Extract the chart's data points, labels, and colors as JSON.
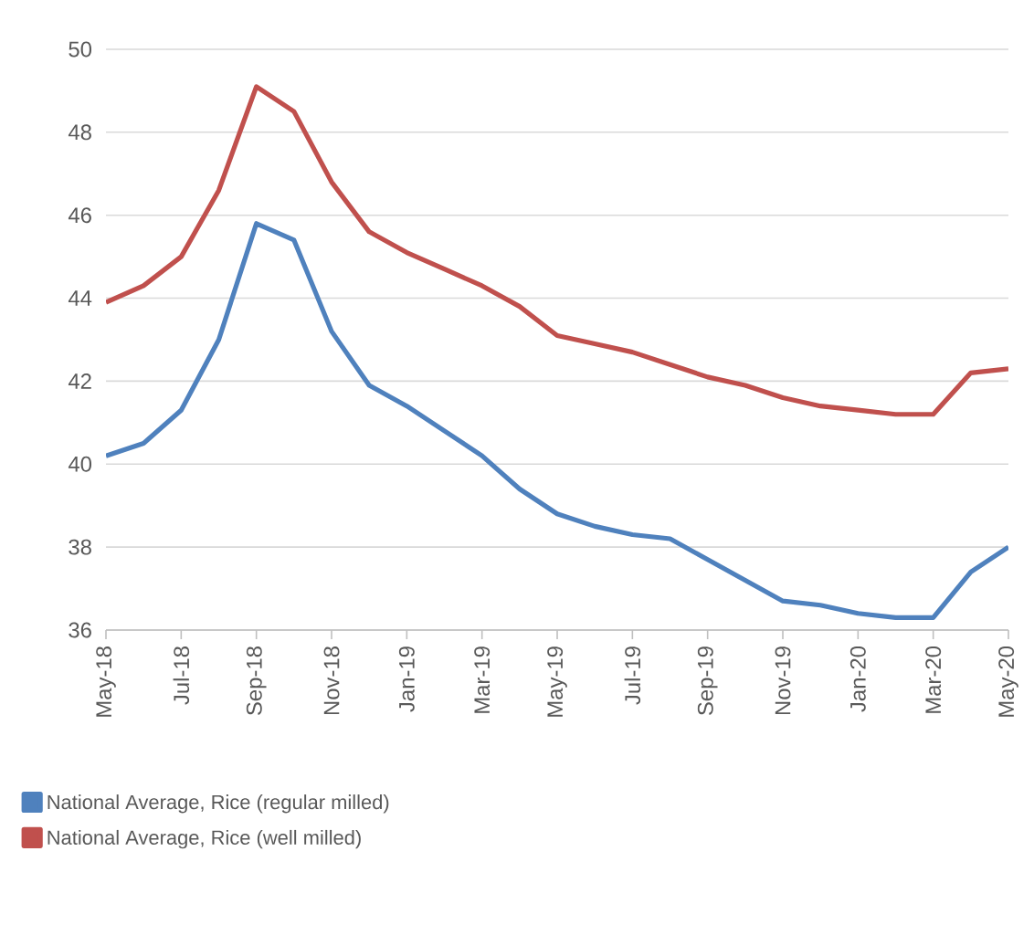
{
  "chart_data": {
    "type": "line",
    "categories": [
      "May-18",
      null,
      "Jul-18",
      null,
      "Sep-18",
      null,
      "Nov-18",
      null,
      "Jan-19",
      null,
      "Mar-19",
      null,
      "May-19",
      null,
      "Jul-19",
      null,
      "Sep-19",
      null,
      "Nov-19",
      null,
      "Jan-20",
      null,
      "Mar-20",
      null,
      "May-20"
    ],
    "series": [
      {
        "name": "National Average, Rice (regular milled)",
        "color": "#4f81bd",
        "values": [
          40.2,
          40.5,
          41.3,
          43.0,
          45.8,
          45.4,
          43.2,
          41.9,
          41.4,
          40.8,
          40.2,
          39.4,
          38.8,
          38.5,
          38.3,
          38.2,
          37.7,
          37.2,
          36.7,
          36.6,
          36.4,
          36.3,
          36.3,
          37.4,
          38.0
        ]
      },
      {
        "name": "National Average, Rice (well milled)",
        "color": "#c0504d",
        "values": [
          43.9,
          44.3,
          45.0,
          46.6,
          49.1,
          48.5,
          46.8,
          45.6,
          45.1,
          44.7,
          44.3,
          43.8,
          43.1,
          42.9,
          42.7,
          42.4,
          42.1,
          41.9,
          41.6,
          41.4,
          41.3,
          41.2,
          41.2,
          42.2,
          42.3
        ]
      }
    ],
    "ylim": [
      36,
      50
    ],
    "yticks": [
      36,
      38,
      40,
      42,
      44,
      46,
      48,
      50
    ],
    "grid": "y",
    "legend": "bottom left"
  }
}
